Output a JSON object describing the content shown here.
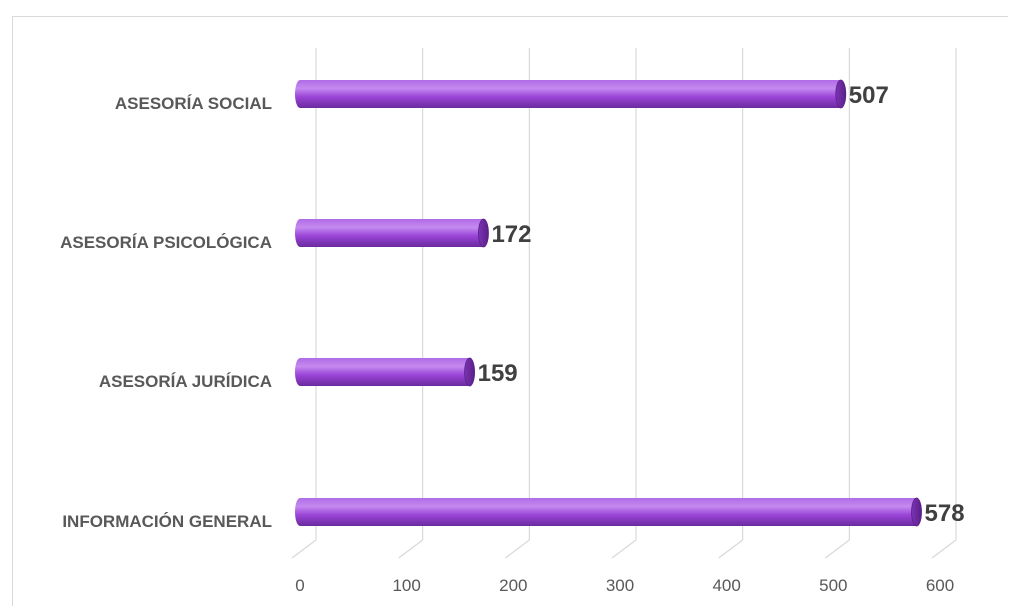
{
  "chart_data": {
    "type": "bar",
    "orientation": "horizontal",
    "categories": [
      "INFORMACIÓN GENERAL",
      "ASESORÍA JURÍDICA",
      "ASESORÍA PSICOLÓGICA",
      "ASESORÍA SOCIAL"
    ],
    "values": [
      578,
      159,
      172,
      507
    ],
    "xticks": [
      0,
      100,
      200,
      300,
      400,
      500,
      600
    ],
    "xlim": [
      0,
      600
    ],
    "grid": true,
    "data_labels": true,
    "bar_color": "#9B45D8",
    "bar_dark_color": "#6B2A9E",
    "bar_light_color": "#C58AF0",
    "style": "3d-cylinder"
  }
}
